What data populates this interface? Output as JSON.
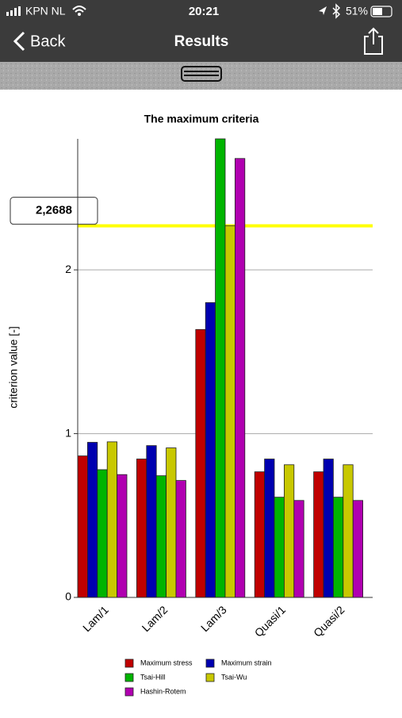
{
  "status_bar": {
    "carrier": "KPN NL",
    "time": "20:21",
    "battery": "51%"
  },
  "nav": {
    "back": "Back",
    "title": "Results"
  },
  "chart_data": {
    "type": "bar",
    "title": "The maximum criteria",
    "y_label": "criterion value [-]",
    "categories": [
      "Lam/1",
      "Lam/2",
      "Lam/3",
      "Quasi/1",
      "Quasi/2"
    ],
    "series": [
      {
        "name": "Maximum stress",
        "color": "#c00000",
        "values": [
          0.864,
          0.845,
          1.636,
          0.767,
          0.767
        ]
      },
      {
        "name": "Maximum strain",
        "color": "#0000b0",
        "values": [
          0.947,
          0.927,
          1.8,
          0.845,
          0.845
        ]
      },
      {
        "name": "Tsai-Hill",
        "color": "#00b400",
        "values": [
          0.78,
          0.743,
          2.8,
          0.612,
          0.612
        ]
      },
      {
        "name": "Tsai-Wu",
        "color": "#c8c800",
        "values": [
          0.95,
          0.913,
          2.2688,
          0.81,
          0.81
        ]
      },
      {
        "name": "Hashin-Rotem",
        "color": "#b000b0",
        "values": [
          0.75,
          0.714,
          2.68,
          0.592,
          0.592
        ]
      }
    ],
    "ylim": [
      0,
      2.8
    ],
    "yticks": [
      0,
      1,
      2
    ],
    "grid": true,
    "annotation": {
      "value": 2.2688,
      "label": "2,2688",
      "color": "#ffff00"
    }
  }
}
